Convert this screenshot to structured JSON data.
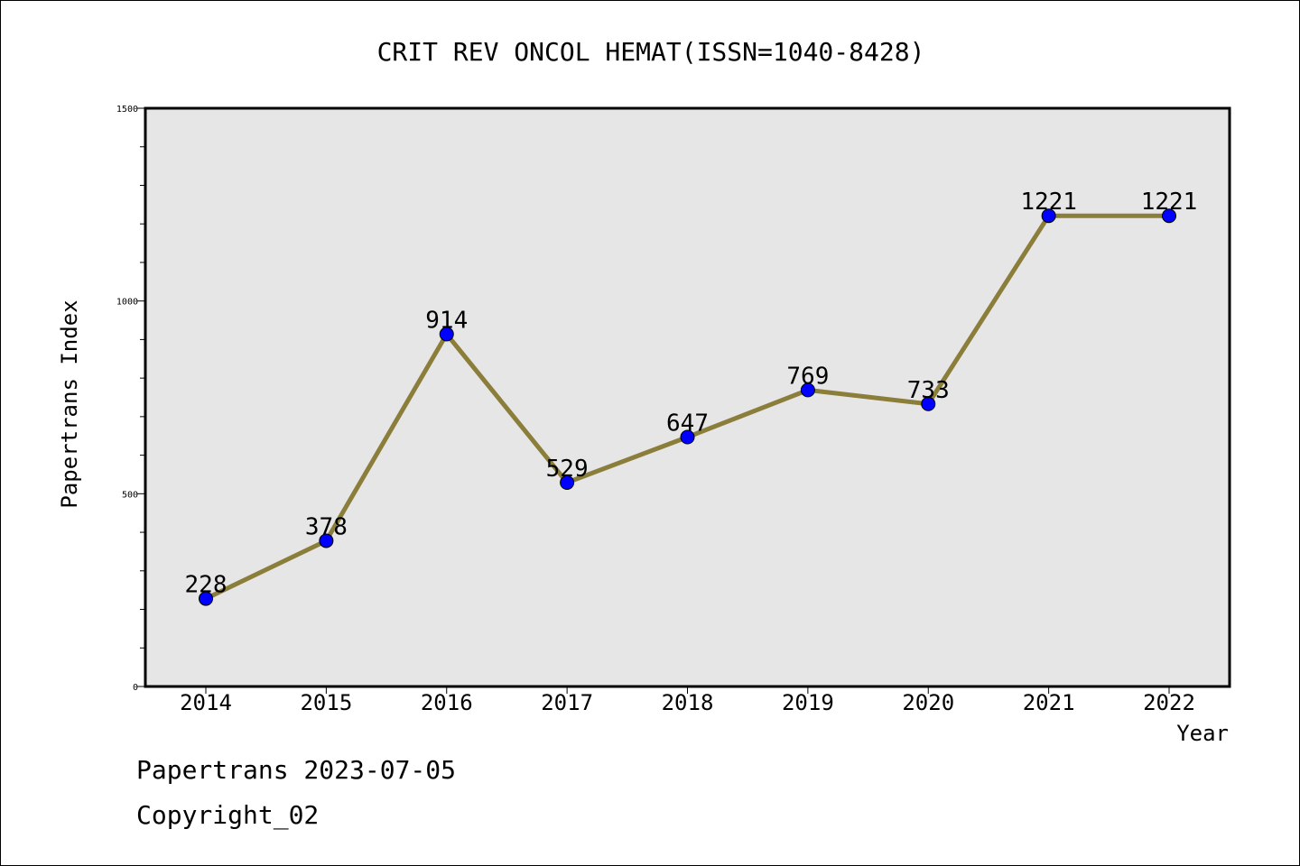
{
  "chart_data": {
    "type": "line",
    "title": "CRIT REV ONCOL HEMAT(ISSN=1040-8428)",
    "xlabel": "Year",
    "ylabel": "Papertrans Index",
    "categories": [
      "2014",
      "2015",
      "2016",
      "2017",
      "2018",
      "2019",
      "2020",
      "2021",
      "2022"
    ],
    "values": [
      228,
      378,
      914,
      529,
      647,
      769,
      733,
      1221,
      1221
    ],
    "data_labels": [
      "228",
      "378",
      "914",
      "529",
      "647",
      "769",
      "733",
      "1221",
      "1221"
    ],
    "ylim": [
      0,
      1500
    ],
    "y_tick_labels": [
      "0",
      "500",
      "1000",
      "1500"
    ],
    "y_tick_values": [
      0,
      500,
      1000,
      1500
    ],
    "y_minor_step": 100,
    "grid": false,
    "colors": {
      "line": "#8b7d3a",
      "marker": "#0000ff",
      "plot_background": "#e6e6e6"
    }
  },
  "footer": {
    "line1": "Papertrans 2023-07-05",
    "line2": "Copyright_02"
  }
}
